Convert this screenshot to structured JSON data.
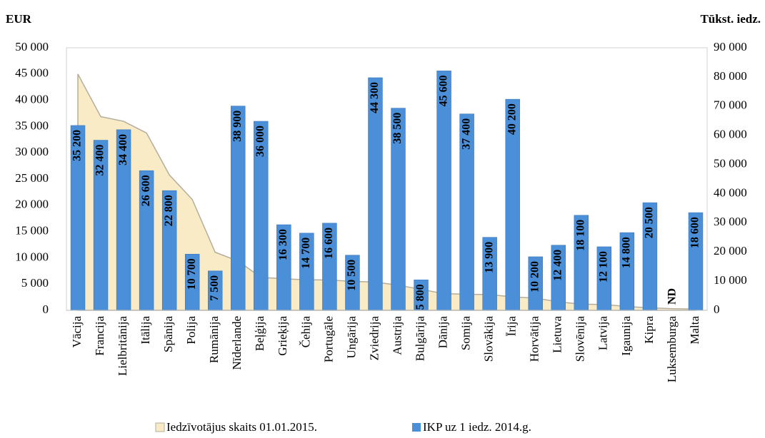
{
  "chart_data": {
    "type": "bar",
    "y_label": "EUR",
    "y2_label": "Tūkst. iedz.",
    "categories": [
      "Vācija",
      "Francija",
      "Lielbritānija",
      "Itālija",
      "Spānija",
      "Polija",
      "Rumānija",
      "Nīderlande",
      "Beļģija",
      "Grieķija",
      "Čehija",
      "Portugāle",
      "Ungārija",
      "Zviedrija",
      "Austrija",
      "Bulgārija",
      "Dānija",
      "Somija",
      "Slovākija",
      "Īrija",
      "Horvātija",
      "Lietuva",
      "Slovēnija",
      "Latvija",
      "Igaunija",
      "Kipra",
      "Luksemburga",
      "Malta"
    ],
    "series": [
      {
        "name": "Iedzīvotājus skaits 01.01.2015.",
        "type": "area",
        "axis": "y2",
        "color": "#f8ebc6",
        "values": [
          81000,
          66400,
          64800,
          60800,
          46400,
          38000,
          19900,
          16900,
          11300,
          10800,
          10500,
          10400,
          9900,
          9700,
          8600,
          7200,
          5700,
          5500,
          5400,
          4600,
          4200,
          2900,
          2100,
          2000,
          1300,
          850,
          560,
          430
        ]
      },
      {
        "name": "IKP uz 1 iedz. 2014.g.",
        "type": "bar",
        "axis": "y",
        "color": "#4a8fd8",
        "values": [
          35200,
          32400,
          34400,
          26600,
          22800,
          10700,
          7500,
          38900,
          36000,
          16300,
          14700,
          16600,
          10500,
          44300,
          38500,
          5800,
          45600,
          37400,
          13900,
          40200,
          10200,
          12400,
          18100,
          12100,
          14800,
          20500,
          null,
          18600
        ],
        "value_labels": [
          "35 200",
          "32 400",
          "34 400",
          "26 600",
          "22 800",
          "10 700",
          "7 500",
          "38 900",
          "36 000",
          "16 300",
          "14 700",
          "16 600",
          "10 500",
          "44 300",
          "38 500",
          "5 800",
          "45 600",
          "37 400",
          "13 900",
          "40 200",
          "10 200",
          "12 400",
          "18 100",
          "12 100",
          "14 800",
          "20 500",
          "ND",
          "18 600"
        ]
      }
    ],
    "ylim": [
      0,
      50000
    ],
    "yticks": [
      0,
      {
        "value": 5000,
        "label": "5 000"
      },
      {
        "value": 10000,
        "label": "10 000"
      },
      {
        "value": 15000,
        "label": "15 000"
      },
      {
        "value": 20000,
        "label": "20 000"
      },
      {
        "value": 25000,
        "label": "25 000"
      },
      {
        "value": 30000,
        "label": "30 000"
      },
      {
        "value": 35000,
        "label": "35 000"
      },
      {
        "value": 40000,
        "label": "40 000"
      },
      {
        "value": 45000,
        "label": "45 000"
      },
      {
        "value": 50000,
        "label": "50 000"
      }
    ],
    "y2lim": [
      0,
      90000
    ],
    "y2ticks": [
      0,
      {
        "value": 10000,
        "label": "10 000"
      },
      {
        "value": 20000,
        "label": "20 000"
      },
      {
        "value": 30000,
        "label": "30 000"
      },
      {
        "value": 40000,
        "label": "40 000"
      },
      {
        "value": 50000,
        "label": "50 000"
      },
      {
        "value": 60000,
        "label": "60 000"
      },
      {
        "value": 70000,
        "label": "70 000"
      },
      {
        "value": 80000,
        "label": "80 000"
      },
      {
        "value": 90000,
        "label": "90 000"
      }
    ],
    "grid": false
  }
}
